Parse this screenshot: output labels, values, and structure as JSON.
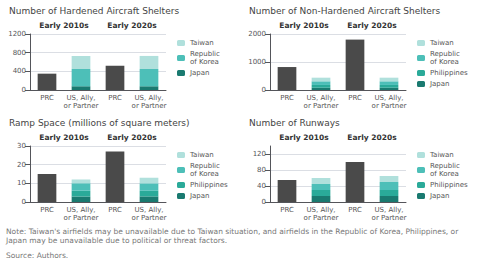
{
  "chart_data": [
    {
      "type": "bar",
      "stacked": true,
      "grid": true,
      "legend": "right",
      "title": "Number of Hardened Aircraft Shelters",
      "annotations": [
        "Early 2010s",
        "Early 2020s"
      ],
      "categories": [
        "PRC",
        "US, Ally,\nor Partner",
        "PRC",
        "US, Ally,\nor Partner"
      ],
      "ylim": [
        0,
        1200
      ],
      "yticks": [
        0,
        400,
        800,
        1200
      ],
      "series": [
        {
          "color": "#4a4a4a",
          "values": [
            350,
            null,
            520,
            null
          ]
        },
        {
          "name": "Japan",
          "color": "#1a7a70",
          "values": [
            null,
            80,
            null,
            80
          ]
        },
        {
          "name": "Republic\nof Korea",
          "color": "#4dbfb8",
          "values": [
            null,
            370,
            null,
            370
          ]
        },
        {
          "name": "Taiwan",
          "color": "#b0e0dc",
          "values": [
            null,
            280,
            null,
            280
          ]
        }
      ]
    },
    {
      "type": "bar",
      "stacked": true,
      "grid": true,
      "legend": "right",
      "title": "Number of Non-Hardened Aircraft Shelters",
      "annotations": [
        "Early 2010s",
        "Early 2020s"
      ],
      "categories": [
        "PRC",
        "US, Ally,\nor Partner",
        "PRC",
        "US, Ally,\nor Partner"
      ],
      "ylim": [
        0,
        2000
      ],
      "yticks": [
        0,
        1000,
        2000
      ],
      "series": [
        {
          "color": "#4a4a4a",
          "values": [
            820,
            null,
            1800,
            null
          ]
        },
        {
          "name": "Japan",
          "color": "#1a7a70",
          "values": [
            null,
            80,
            null,
            80
          ]
        },
        {
          "name": "Philippines",
          "color": "#2aaa99",
          "values": [
            null,
            100,
            null,
            100
          ]
        },
        {
          "name": "Republic\nof Korea",
          "color": "#4dbfb8",
          "values": [
            null,
            130,
            null,
            130
          ]
        },
        {
          "name": "Taiwan",
          "color": "#b0e0dc",
          "values": [
            null,
            130,
            null,
            130
          ]
        }
      ]
    },
    {
      "type": "bar",
      "stacked": true,
      "grid": true,
      "legend": "right",
      "title": "Ramp Space (millions of square meters)",
      "annotations": [
        "Early 2010s",
        "Early 2020s"
      ],
      "categories": [
        "PRC",
        "US, Ally,\nor Partner",
        "PRC",
        "US, Ally,\nor Partner"
      ],
      "ylim": [
        0,
        30
      ],
      "yticks": [
        0,
        10,
        20,
        30
      ],
      "series": [
        {
          "color": "#4a4a4a",
          "values": [
            15,
            null,
            27,
            null
          ]
        },
        {
          "name": "Japan",
          "color": "#1a7a70",
          "values": [
            null,
            3,
            null,
            3
          ]
        },
        {
          "name": "Philippines",
          "color": "#2aaa99",
          "values": [
            null,
            3,
            null,
            3
          ]
        },
        {
          "name": "Republic\nof Korea",
          "color": "#4dbfb8",
          "values": [
            null,
            4,
            null,
            4
          ]
        },
        {
          "name": "Taiwan",
          "color": "#b0e0dc",
          "values": [
            null,
            2,
            null,
            3
          ]
        }
      ]
    },
    {
      "type": "bar",
      "stacked": true,
      "grid": true,
      "legend": "right",
      "title": "Number of Runways",
      "annotations": [
        "Early 2010s",
        "Early 2020s"
      ],
      "categories": [
        "PRC",
        "US, Ally,\nor Partner",
        "PRC",
        "US, Ally,\nor Partner"
      ],
      "ylim": [
        0,
        140
      ],
      "yticks": [
        0,
        40,
        80,
        120
      ],
      "series": [
        {
          "color": "#4a4a4a",
          "values": [
            55,
            null,
            100,
            null
          ]
        },
        {
          "name": "Japan",
          "color": "#1a7a70",
          "values": [
            null,
            15,
            null,
            15
          ]
        },
        {
          "name": "Philippines",
          "color": "#2aaa99",
          "values": [
            null,
            15,
            null,
            15
          ]
        },
        {
          "name": "Republic\nof Korea",
          "color": "#4dbfb8",
          "values": [
            null,
            15,
            null,
            20
          ]
        },
        {
          "name": "Taiwan",
          "color": "#b0e0dc",
          "values": [
            null,
            15,
            null,
            15
          ]
        }
      ]
    }
  ],
  "note": "Note: Taiwan's airfields may be unavailable due to Taiwan situation, and airfields in the Republic of Korea, Philippines, or Japan may be unavailable due to political or threat factors.",
  "source": "Source: Authors."
}
